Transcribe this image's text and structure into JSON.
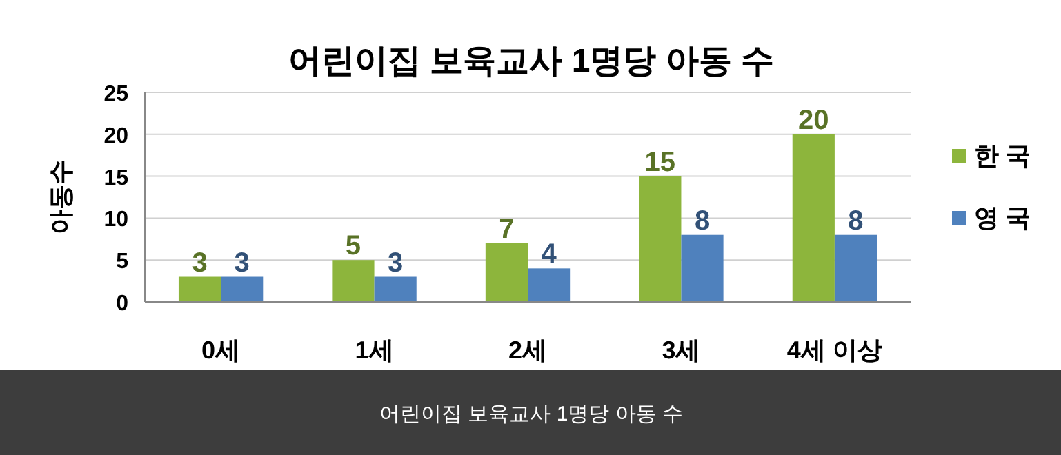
{
  "chart_data": {
    "type": "bar",
    "title": "어린이집 보육교사 1명당 아동 수",
    "ylabel": "아동수",
    "categories": [
      "0세",
      "1세",
      "2세",
      "3세",
      "4세 이상"
    ],
    "series": [
      {
        "name": "한 국",
        "color": "#8db53c",
        "values": [
          3,
          5,
          7,
          15,
          20
        ]
      },
      {
        "name": "영 국",
        "color": "#4f81bd",
        "values": [
          3,
          3,
          4,
          8,
          8
        ]
      }
    ],
    "ylim": [
      0,
      25
    ],
    "yticks": [
      0,
      5,
      10,
      15,
      20,
      25
    ],
    "grid": "y",
    "legend": "right",
    "data_labels": true,
    "annotations": [
      "어린이집 보육교사 1명당 아동 수"
    ]
  }
}
